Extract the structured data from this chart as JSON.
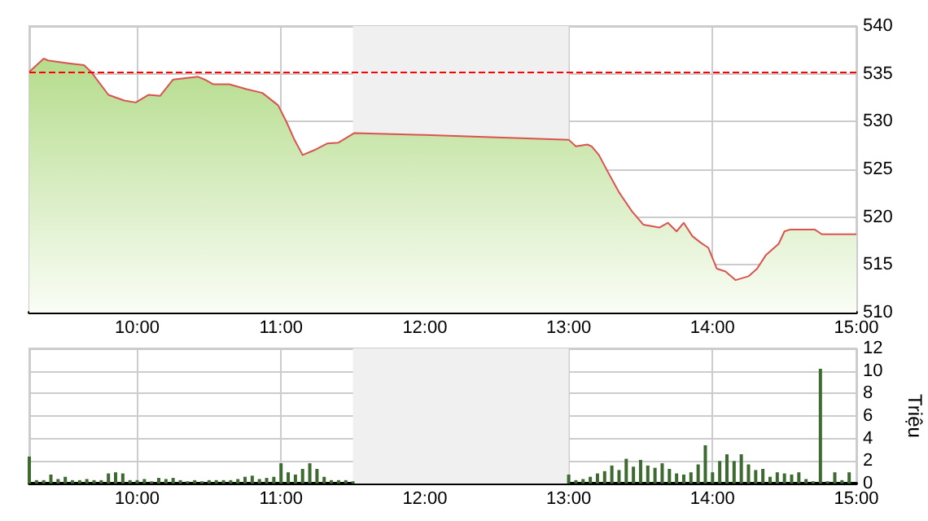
{
  "chart_data": [
    {
      "type": "area",
      "xlim": [
        9.25,
        15
      ],
      "ylim": [
        510,
        540
      ],
      "yticks": [
        510,
        515,
        520,
        525,
        530,
        535,
        540
      ],
      "xticks": [
        {
          "value": 10,
          "label": "10:00"
        },
        {
          "value": 11,
          "label": "11:00"
        },
        {
          "value": 12,
          "label": "12:00"
        },
        {
          "value": 13,
          "label": "13:00"
        },
        {
          "value": 14,
          "label": "14:00"
        },
        {
          "value": 15,
          "label": "15:00"
        }
      ],
      "grid": true,
      "marker": "none",
      "line_style": "solid",
      "ref_lines": [
        {
          "axis": "y",
          "value": 535.2,
          "color": "#ff0000",
          "line_style": "dashed"
        }
      ],
      "bands": [
        {
          "axis": "x",
          "from": 11.5,
          "to": 13,
          "color": "#f0f0f0"
        }
      ],
      "series": [
        {
          "color": "#b5dc8c",
          "x": [
            9.25,
            9.35,
            9.38,
            9.52,
            9.63,
            9.68,
            9.8,
            9.91,
            9.99,
            10.08,
            10.16,
            10.25,
            10.42,
            10.47,
            10.53,
            10.64,
            10.76,
            10.87,
            10.98,
            11.04,
            11.09,
            11.15,
            11.23,
            11.32,
            11.4,
            11.51,
            12.0,
            13.0,
            13.05,
            13.13,
            13.16,
            13.21,
            13.27,
            13.35,
            13.44,
            13.52,
            13.63,
            13.69,
            13.75,
            13.8,
            13.86,
            13.92,
            13.97,
            14.03,
            14.09,
            14.16,
            14.25,
            14.31,
            14.37,
            14.46,
            14.5,
            14.54,
            14.71,
            14.76,
            15.0
          ],
          "values": [
            535.2,
            536.6,
            536.4,
            536.1,
            535.9,
            535.2,
            532.8,
            532.2,
            532,
            532.8,
            532.7,
            534.4,
            534.7,
            534.4,
            533.9,
            533.9,
            533.4,
            533,
            531.7,
            529.9,
            528.2,
            526.5,
            527,
            527.7,
            527.8,
            528.8,
            528.6,
            528.1,
            527.4,
            527.6,
            527.4,
            526.5,
            524.8,
            522.6,
            520.6,
            519.2,
            518.9,
            519.4,
            518.5,
            519.4,
            518,
            517.3,
            516.8,
            514.6,
            514.3,
            513.4,
            513.8,
            514.6,
            516,
            517.2,
            518.5,
            518.7,
            518.7,
            518.2,
            518.2
          ]
        }
      ]
    },
    {
      "type": "bar",
      "xlim": [
        9.25,
        15
      ],
      "ylim": [
        0,
        12
      ],
      "yticks": [
        0,
        2,
        4,
        6,
        8,
        10,
        12
      ],
      "ylabel": "Triệu",
      "xticks": [
        {
          "value": 10,
          "label": "10:00"
        },
        {
          "value": 11,
          "label": "11:00"
        },
        {
          "value": 12,
          "label": "12:00"
        },
        {
          "value": 13,
          "label": "13:00"
        },
        {
          "value": 14,
          "label": "14:00"
        },
        {
          "value": 15,
          "label": "15:00"
        }
      ],
      "grid": true,
      "bands": [
        {
          "axis": "x",
          "from": 11.5,
          "to": 13,
          "color": "#f0f0f0"
        }
      ],
      "series": [
        {
          "color": "#3d6b2f",
          "x": [
            9.25,
            9.3,
            9.35,
            9.4,
            9.45,
            9.5,
            9.55,
            9.6,
            9.65,
            9.7,
            9.75,
            9.8,
            9.85,
            9.9,
            9.95,
            10.0,
            10.05,
            10.1,
            10.15,
            10.2,
            10.25,
            10.3,
            10.35,
            10.4,
            10.45,
            10.5,
            10.55,
            10.6,
            10.65,
            10.7,
            10.75,
            10.8,
            10.85,
            10.9,
            10.95,
            11.0,
            11.05,
            11.1,
            11.15,
            11.2,
            11.25,
            11.3,
            11.35,
            11.4,
            11.45,
            11.5,
            13.0,
            13.05,
            13.1,
            13.15,
            13.2,
            13.25,
            13.3,
            13.35,
            13.4,
            13.45,
            13.5,
            13.55,
            13.6,
            13.65,
            13.7,
            13.75,
            13.8,
            13.85,
            13.9,
            13.95,
            14.0,
            14.05,
            14.1,
            14.15,
            14.2,
            14.25,
            14.3,
            14.35,
            14.4,
            14.45,
            14.5,
            14.55,
            14.6,
            14.65,
            14.7,
            14.75,
            14.8,
            14.85,
            14.9,
            14.95
          ],
          "values": [
            2.4,
            0.3,
            0.3,
            0.8,
            0.4,
            0.6,
            0.3,
            0.3,
            0.4,
            0.3,
            0.3,
            0.9,
            1.0,
            0.9,
            0.3,
            0.3,
            0.4,
            0.2,
            0.5,
            0.4,
            0.5,
            0.3,
            0.2,
            0.3,
            0.2,
            0.3,
            0.3,
            0.3,
            0.3,
            0.4,
            0.6,
            0.7,
            0.4,
            0.5,
            0.6,
            1.8,
            1.0,
            0.8,
            1.3,
            1.8,
            1.3,
            0.6,
            0.3,
            0.3,
            0.3,
            0.2,
            0.8,
            0.3,
            0.4,
            0.6,
            0.9,
            1.1,
            1.6,
            1.2,
            2.2,
            1.5,
            2.1,
            1.6,
            1.4,
            1.8,
            1.3,
            0.9,
            0.8,
            1.0,
            1.7,
            3.4,
            1.0,
            2.0,
            2.6,
            2.0,
            2.6,
            1.7,
            1.2,
            1.3,
            0.6,
            1.0,
            0.9,
            0.8,
            1.0,
            0.4,
            0.2,
            10.2,
            0.2,
            1.0,
            0.3,
            1.0
          ]
        }
      ]
    }
  ]
}
